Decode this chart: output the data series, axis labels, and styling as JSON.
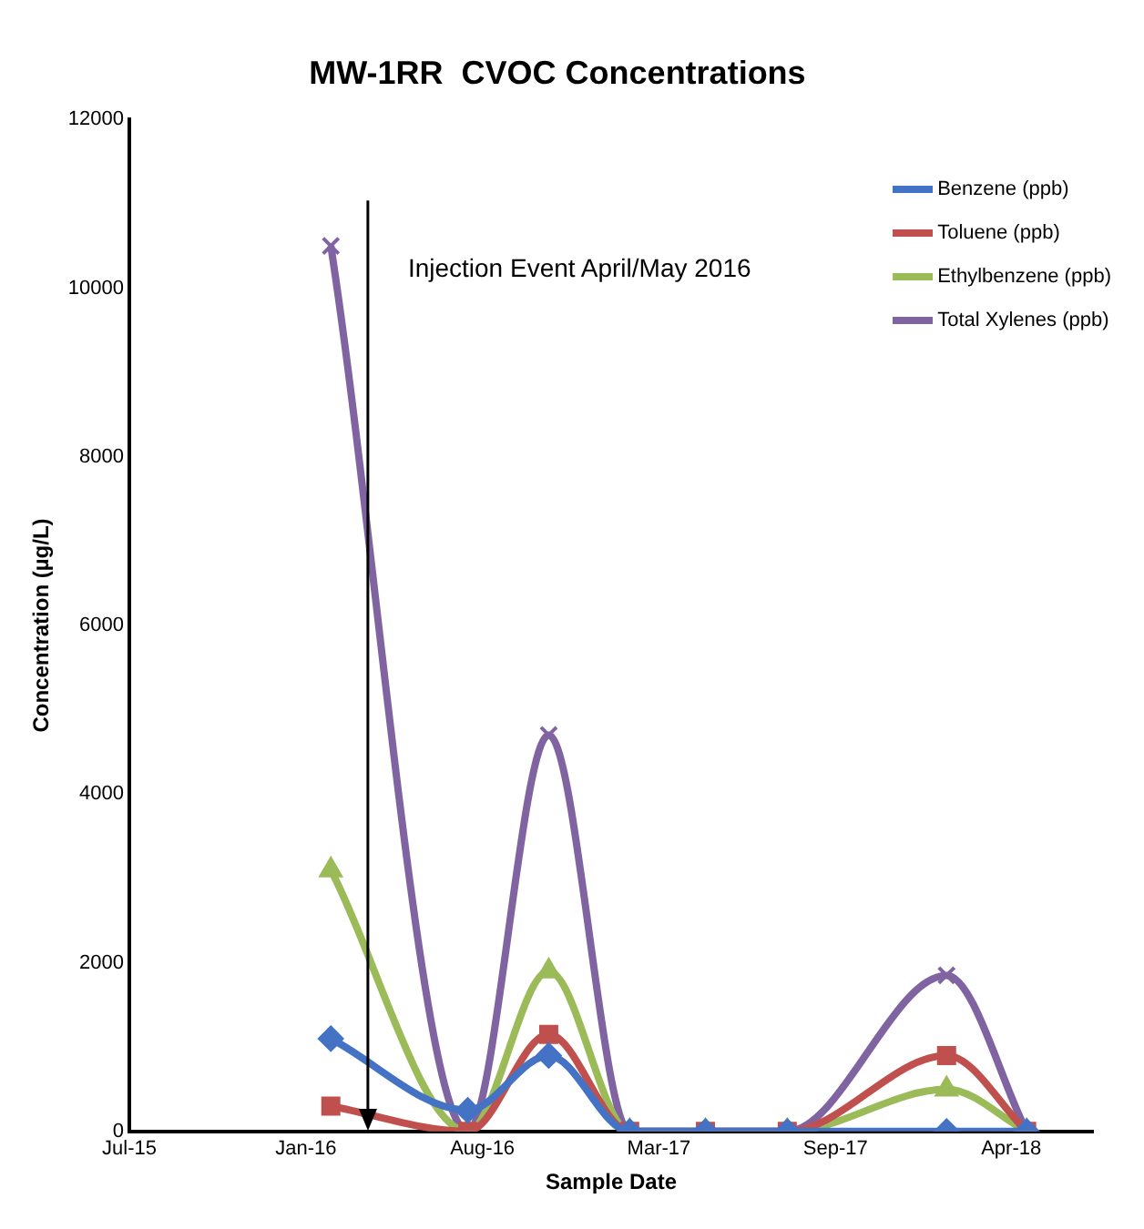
{
  "chart_data": {
    "type": "line",
    "title": "MW-1RR  CVOC Concentrations",
    "xlabel": "Sample Date",
    "ylabel": "Concentration (µg/L)",
    "x": [
      "2016-02-20",
      "2016-07-28",
      "2016-10-30",
      "2017-02-01",
      "2017-04-30",
      "2017-08-03",
      "2018-02-04",
      "2018-05-08"
    ],
    "series": [
      {
        "name": "Benzene (ppb)",
        "color": "#4472c4",
        "marker": "diamond",
        "values": [
          1100,
          250,
          900,
          0,
          0,
          0,
          0,
          0
        ]
      },
      {
        "name": "Toluene (ppb)",
        "color": "#c0504d",
        "marker": "square",
        "values": [
          300,
          0,
          1150,
          0,
          0,
          0,
          900,
          0
        ]
      },
      {
        "name": "Ethylbenzene (ppb)",
        "color": "#9bbb59",
        "marker": "triangle",
        "values": [
          3100,
          0,
          1900,
          0,
          0,
          0,
          500,
          0
        ]
      },
      {
        "name": "Total Xylenes (ppb)",
        "color": "#8064a2",
        "marker": "cross",
        "values": [
          10500,
          0,
          4700,
          0,
          0,
          0,
          1850,
          0
        ]
      }
    ],
    "ref_lines": [
      {
        "axis": "x",
        "value": "2016-04-03",
        "label": "Injection Event April/May 2016",
        "color": "#000000"
      }
    ],
    "xlim": [
      "2015-07-01",
      "2018-07-24"
    ],
    "xticks": [
      {
        "value": "2015-07-01",
        "label": "Jul-15"
      },
      {
        "value": "2016-01-22",
        "label": "Jan-16"
      },
      {
        "value": "2016-08-14",
        "label": "Aug-16"
      },
      {
        "value": "2017-03-07",
        "label": "Mar-17"
      },
      {
        "value": "2017-09-28",
        "label": "Sep-17"
      },
      {
        "value": "2018-04-20",
        "label": "Apr-18"
      }
    ],
    "ylim": [
      0,
      12000
    ],
    "yticks": [
      0,
      2000,
      4000,
      6000,
      8000,
      10000,
      12000
    ],
    "grid": false,
    "legend": "top right"
  }
}
